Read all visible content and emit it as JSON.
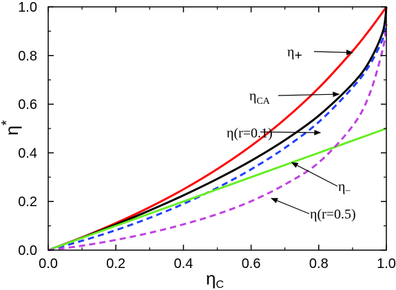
{
  "chart_data": {
    "type": "line",
    "title": "",
    "xlabel": "η",
    "xlabel_sub": "C",
    "ylabel": "η",
    "ylabel_sup": "*",
    "xlim": [
      0.0,
      1.0
    ],
    "ylim": [
      0.0,
      1.0
    ],
    "xticks": [
      "0.0",
      "0.2",
      "0.4",
      "0.6",
      "0.8",
      "1.0"
    ],
    "yticks": [
      "0.0",
      "0.2",
      "0.4",
      "0.6",
      "0.8",
      "1.0"
    ],
    "grid": false,
    "legend": "none",
    "x": [
      0.0,
      0.1,
      0.2,
      0.3,
      0.4,
      0.5,
      0.6,
      0.7,
      0.8,
      0.9,
      0.95,
      0.99,
      1.0
    ],
    "series": [
      {
        "color": "#ff0000",
        "dash": "solid",
        "values": [
          0.0,
          0.0525,
          0.1111,
          0.1765,
          0.25,
          0.3333,
          0.4286,
          0.5385,
          0.6667,
          0.8182,
          0.9048,
          0.9802,
          1.0
        ]
      },
      {
        "color": "#000000",
        "dash": "solid",
        "values": [
          0.0,
          0.0513,
          0.1056,
          0.1633,
          0.2254,
          0.2929,
          0.3675,
          0.4523,
          0.5528,
          0.6838,
          0.7764,
          0.9,
          1.0
        ]
      },
      {
        "color": "#1f3fff",
        "dash": "dashed",
        "values": [
          0.0,
          0.0385,
          0.0823,
          0.1327,
          0.1902,
          0.2562,
          0.3322,
          0.4203,
          0.5265,
          0.6681,
          0.7597,
          0.87,
          0.93
        ]
      },
      {
        "color": "#66ee22",
        "dash": "solid",
        "values": [
          0.0,
          0.05,
          0.1,
          0.15,
          0.2,
          0.25,
          0.3,
          0.35,
          0.4,
          0.45,
          0.475,
          0.495,
          0.5
        ]
      },
      {
        "color": "#c040e0",
        "dash": "dashed",
        "values": [
          0.0,
          0.018,
          0.042,
          0.071,
          0.106,
          0.148,
          0.201,
          0.27,
          0.36,
          0.51,
          0.64,
          0.83,
          0.93
        ]
      }
    ],
    "annotations": [
      {
        "text": "η",
        "sub": "+",
        "sup": "",
        "arrow_to": [
          0.9,
          0.812
        ]
      },
      {
        "text": "η",
        "sub": "CA",
        "sup": "",
        "arrow_to": [
          0.86,
          0.641
        ]
      },
      {
        "text": "η(r=0.1)",
        "sub": "",
        "sup": "",
        "arrow_to": [
          0.805,
          0.483
        ]
      },
      {
        "text": "η",
        "sub": "_",
        "sup": "",
        "arrow_to": [
          0.72,
          0.36
        ]
      },
      {
        "text": "η(r=0.5)",
        "sub": "",
        "sup": "",
        "arrow_to": [
          0.66,
          0.213
        ]
      }
    ]
  }
}
